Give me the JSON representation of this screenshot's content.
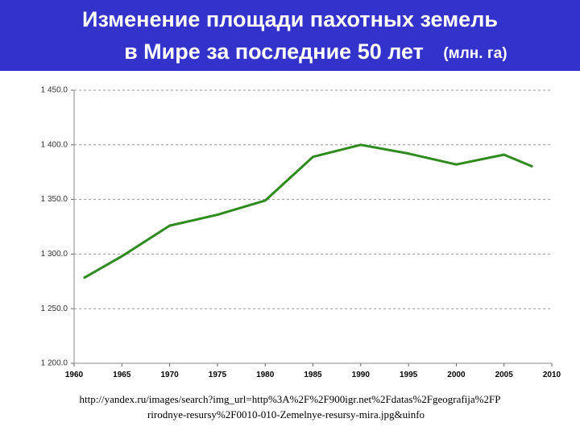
{
  "chart_data": {
    "type": "line",
    "title_lines": [
      "Изменение площади пахотных земель",
      "в Мире за последние 50 лет"
    ],
    "unit": "(млн. га)",
    "x": [
      1961,
      1965,
      1970,
      1975,
      1980,
      1985,
      1990,
      1995,
      2000,
      2005,
      2008
    ],
    "series": [
      {
        "color": "#2e8b1e",
        "values": [
          1278,
          1298,
          1326,
          1336,
          1349,
          1389,
          1400,
          1392,
          1382,
          1391,
          1380
        ]
      }
    ],
    "xlim": [
      1960,
      2010
    ],
    "xticks": [
      1960,
      1965,
      1970,
      1975,
      1980,
      1985,
      1990,
      1995,
      2000,
      2005,
      2010
    ],
    "ylim": [
      1200,
      1450
    ],
    "yticks": [
      {
        "value": 1200,
        "label": "1 200.0"
      },
      {
        "value": 1250,
        "label": "1 250.0"
      },
      {
        "value": 1300,
        "label": "1 300.0"
      },
      {
        "value": 1350,
        "label": "1 350.0"
      },
      {
        "value": 1400,
        "label": "1 400.0"
      },
      {
        "value": 1450,
        "label": "1 450.0"
      }
    ],
    "grid": true,
    "source_lines": [
      "http://yandex.ru/images/search?img_url=http%3A%2F%2F900igr.net%2Fdatas%2Fgeografija%2FP",
      "rirodnye-resursy%2F0010-010-Zemelnye-resursy-mira.jpg&uinfo"
    ]
  }
}
